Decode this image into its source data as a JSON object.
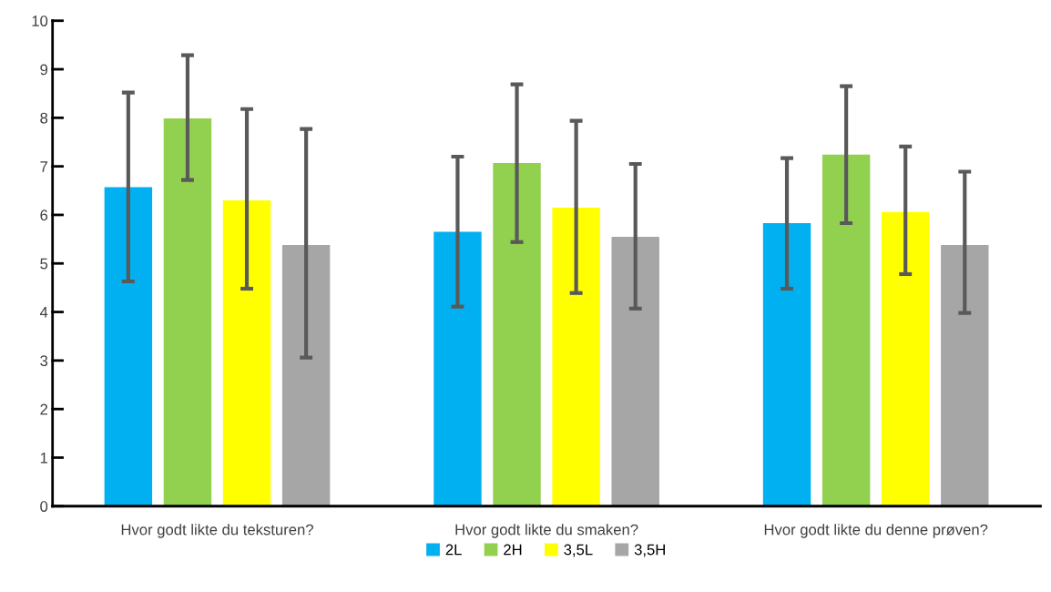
{
  "chart_data": {
    "type": "bar",
    "categories": [
      "Hvor godt likte du teksturen?",
      "Hvor godt likte du smaken?",
      "Hvor godt likte du denne prøven?"
    ],
    "series": [
      {
        "name": "2L",
        "color": "#00b0f0",
        "values": [
          6.57,
          5.65,
          5.83
        ],
        "errors": [
          [
            4.63,
            8.52
          ],
          [
            4.11,
            7.2
          ],
          [
            4.48,
            7.17
          ]
        ]
      },
      {
        "name": "2H",
        "color": "#92d050",
        "values": [
          7.99,
          7.07,
          7.24
        ],
        "errors": [
          [
            6.72,
            9.29
          ],
          [
            5.44,
            8.69
          ],
          [
            5.83,
            8.65
          ]
        ]
      },
      {
        "name": "3,5L",
        "color": "#ffff00",
        "values": [
          6.3,
          6.15,
          6.06
        ],
        "errors": [
          [
            4.48,
            8.18
          ],
          [
            4.39,
            7.94
          ],
          [
            4.78,
            7.41
          ]
        ]
      },
      {
        "name": "3,5H",
        "color": "#a6a6a6",
        "values": [
          5.38,
          5.55,
          5.38
        ],
        "errors": [
          [
            3.06,
            7.77
          ],
          [
            4.07,
            7.05
          ],
          [
            3.98,
            6.89
          ]
        ]
      }
    ],
    "ylim": [
      0,
      10
    ],
    "yticks": [
      0,
      1,
      2,
      3,
      4,
      5,
      6,
      7,
      8,
      9,
      10
    ],
    "grid": false,
    "legend": "bottom"
  }
}
